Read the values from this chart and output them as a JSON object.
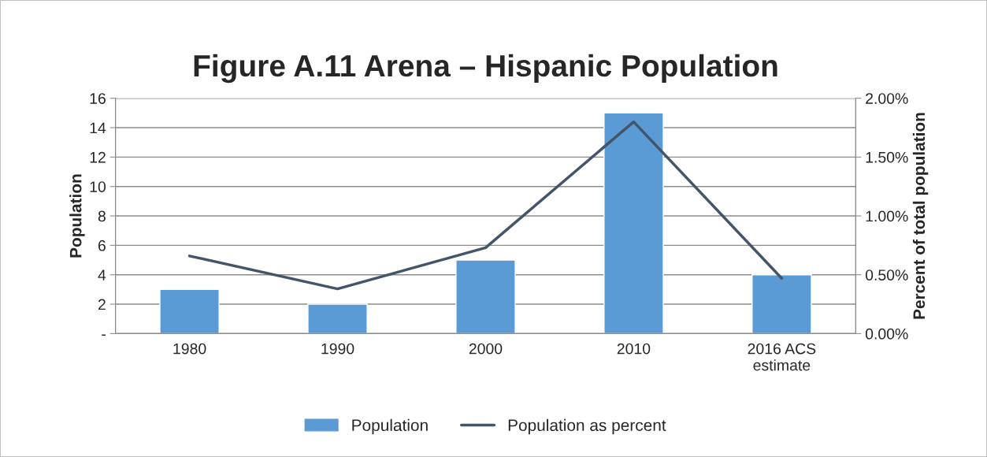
{
  "chart_data": {
    "type": "bar",
    "title": "Figure A.11 Arena – Hispanic Population",
    "ylabel": "Population",
    "y2label": "Percent of total population",
    "categories": [
      "1980",
      "1990",
      "2000",
      "2010",
      "2016 ACS\nestimate"
    ],
    "series": [
      {
        "name": "Population",
        "color": "#5b9bd5",
        "values": [
          3,
          2,
          5,
          15,
          4
        ]
      },
      {
        "name": "Population as percent",
        "type": "line",
        "axis": "y2",
        "color": "#44546a",
        "values": [
          0.66,
          0.38,
          0.73,
          1.8,
          0.47
        ]
      }
    ],
    "ylim": [
      0,
      16
    ],
    "yticks": [
      {
        "value": 0,
        "label": "-"
      },
      2,
      4,
      6,
      8,
      10,
      12,
      14,
      16
    ],
    "y2lim": [
      0,
      2
    ],
    "y2ticks": [
      {
        "value": 0,
        "label": "0.00%"
      },
      {
        "value": 0.5,
        "label": "0.50%"
      },
      {
        "value": 1,
        "label": "1.00%"
      },
      {
        "value": 1.5,
        "label": "1.50%"
      },
      {
        "value": 2,
        "label": "2.00%"
      }
    ],
    "grid": "y",
    "legend": "bottom",
    "marker": "none",
    "line_style": "solid"
  }
}
